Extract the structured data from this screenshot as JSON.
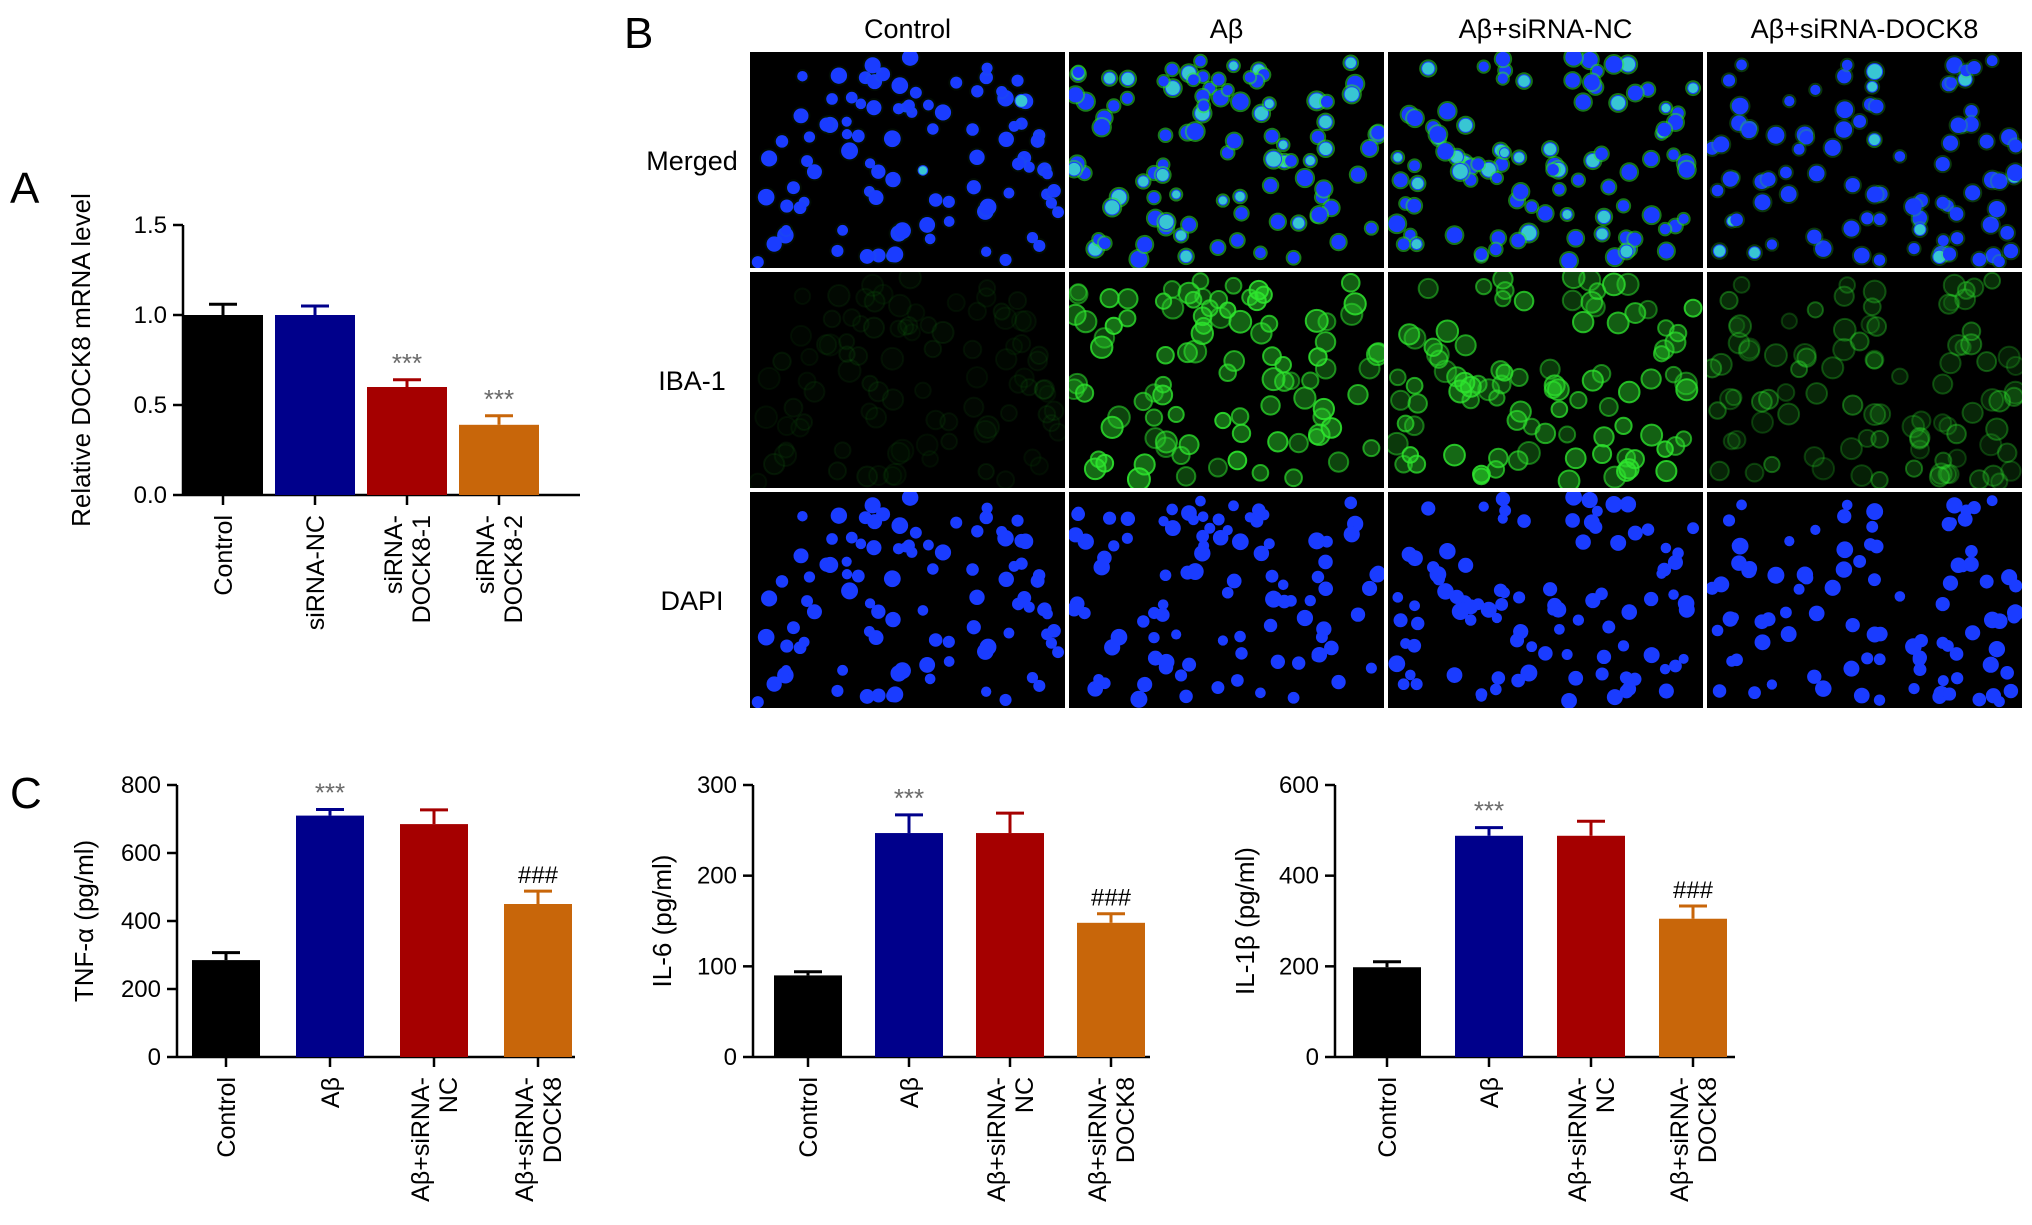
{
  "panel_labels": {
    "a": "A",
    "b": "B",
    "c": "C"
  },
  "colors": {
    "black": "#000000",
    "navy": "#00008b",
    "red": "#a50000",
    "orange": "#c8660a",
    "star_grey": "#6b6b6b",
    "nucleus_blue": "#1a3cff",
    "iba_green": "#2ee62e",
    "merged_cyan": "#40e8c8"
  },
  "chart_data": [
    {
      "id": "A",
      "type": "bar",
      "ylabel": "Relative DOCK8 mRNA level",
      "ylim": [
        0,
        1.5
      ],
      "ticks": [
        0.0,
        0.5,
        1.0,
        1.5
      ],
      "tick_labels": [
        "0.0",
        "0.5",
        "1.0",
        "1.5"
      ],
      "categories": [
        "Control",
        "siRNA-NC",
        "siRNA-\nDOCK8-1",
        "siRNA-\nDOCK8-2"
      ],
      "values": [
        1.0,
        1.0,
        0.6,
        0.39
      ],
      "errors": [
        0.06,
        0.05,
        0.04,
        0.05
      ],
      "colors": [
        "#000000",
        "#00008b",
        "#a50000",
        "#c8660a"
      ],
      "annotations": [
        "",
        "",
        "***",
        "***"
      ]
    },
    {
      "id": "C1",
      "type": "bar",
      "ylabel": "TNF-α (pg/ml)",
      "ylim": [
        0,
        800
      ],
      "ticks": [
        0,
        200,
        400,
        600,
        800
      ],
      "tick_labels": [
        "0",
        "200",
        "400",
        "600",
        "800"
      ],
      "categories": [
        "Control",
        "Aβ",
        "Aβ+siRNA-\nNC",
        "Aβ+siRNA-\nDOCK8"
      ],
      "values": [
        285,
        710,
        685,
        450
      ],
      "errors": [
        22,
        18,
        42,
        38
      ],
      "colors": [
        "#000000",
        "#00008b",
        "#a50000",
        "#c8660a"
      ],
      "annotations": [
        "",
        "***",
        "",
        "###"
      ]
    },
    {
      "id": "C2",
      "type": "bar",
      "ylabel": "IL-6 (pg/ml)",
      "ylim": [
        0,
        300
      ],
      "ticks": [
        0,
        100,
        200,
        300
      ],
      "tick_labels": [
        "0",
        "100",
        "200",
        "300"
      ],
      "categories": [
        "Control",
        "Aβ",
        "Aβ+siRNA-\nNC",
        "Aβ+siRNA-\nDOCK8"
      ],
      "values": [
        90,
        247,
        247,
        148
      ],
      "errors": [
        4,
        20,
        22,
        10
      ],
      "colors": [
        "#000000",
        "#00008b",
        "#a50000",
        "#c8660a"
      ],
      "annotations": [
        "",
        "***",
        "",
        "###"
      ]
    },
    {
      "id": "C3",
      "type": "bar",
      "ylabel": "IL-1β (pg/ml)",
      "ylim": [
        0,
        600
      ],
      "ticks": [
        0,
        200,
        400,
        600
      ],
      "tick_labels": [
        "0",
        "200",
        "400",
        "600"
      ],
      "categories": [
        "Control",
        "Aβ",
        "Aβ+siRNA-\nNC",
        "Aβ+siRNA-\nDOCK8"
      ],
      "values": [
        198,
        488,
        488,
        305
      ],
      "errors": [
        12,
        18,
        32,
        28
      ],
      "colors": [
        "#000000",
        "#00008b",
        "#a50000",
        "#c8660a"
      ],
      "annotations": [
        "",
        "***",
        "",
        "###"
      ]
    }
  ],
  "micrographs": {
    "columns": [
      "Control",
      "Aβ",
      "Aβ+siRNA-NC",
      "Aβ+siRNA-DOCK8"
    ],
    "rows": [
      "Merged",
      "IBA-1",
      "DAPI"
    ],
    "iba1_intensity": [
      0.08,
      0.9,
      0.85,
      0.4
    ]
  }
}
